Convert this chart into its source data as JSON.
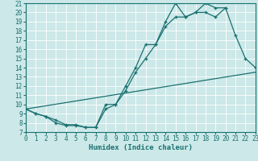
{
  "title": "",
  "xlabel": "Humidex (Indice chaleur)",
  "bg_color": "#cce8e8",
  "grid_color": "#ffffff",
  "line_color": "#1a7070",
  "marker": "+",
  "xlim": [
    0,
    23
  ],
  "ylim": [
    7,
    21
  ],
  "xticks": [
    0,
    1,
    2,
    3,
    4,
    5,
    6,
    7,
    8,
    9,
    10,
    11,
    12,
    13,
    14,
    15,
    16,
    17,
    18,
    19,
    20,
    21,
    22,
    23
  ],
  "yticks": [
    7,
    8,
    9,
    10,
    11,
    12,
    13,
    14,
    15,
    16,
    17,
    18,
    19,
    20,
    21
  ],
  "line1_x": [
    0,
    1,
    2,
    3,
    4,
    5,
    6,
    7,
    8,
    9,
    10,
    11,
    12,
    13,
    14,
    15,
    16,
    17,
    18,
    19,
    20,
    21,
    22,
    23
  ],
  "line1_y": [
    9.5,
    9.0,
    8.7,
    8.0,
    7.7,
    7.7,
    7.5,
    7.5,
    10.0,
    10.0,
    12.0,
    14.0,
    16.5,
    16.5,
    19.0,
    21.0,
    19.5,
    20.0,
    21.0,
    20.5,
    20.5,
    17.5,
    15.0,
    14.0
  ],
  "line2_x": [
    0,
    1,
    2,
    3,
    4,
    5,
    6,
    7,
    8,
    9,
    10,
    11,
    12,
    13,
    14,
    15,
    16,
    17,
    18,
    19,
    20
  ],
  "line2_y": [
    9.5,
    9.0,
    8.7,
    8.3,
    7.8,
    7.8,
    7.5,
    7.5,
    9.5,
    10.0,
    11.5,
    13.5,
    15.0,
    16.5,
    18.5,
    19.5,
    19.5,
    20.0,
    20.0,
    19.5,
    20.5
  ],
  "line3_x": [
    0,
    23
  ],
  "line3_y": [
    9.5,
    13.5
  ]
}
